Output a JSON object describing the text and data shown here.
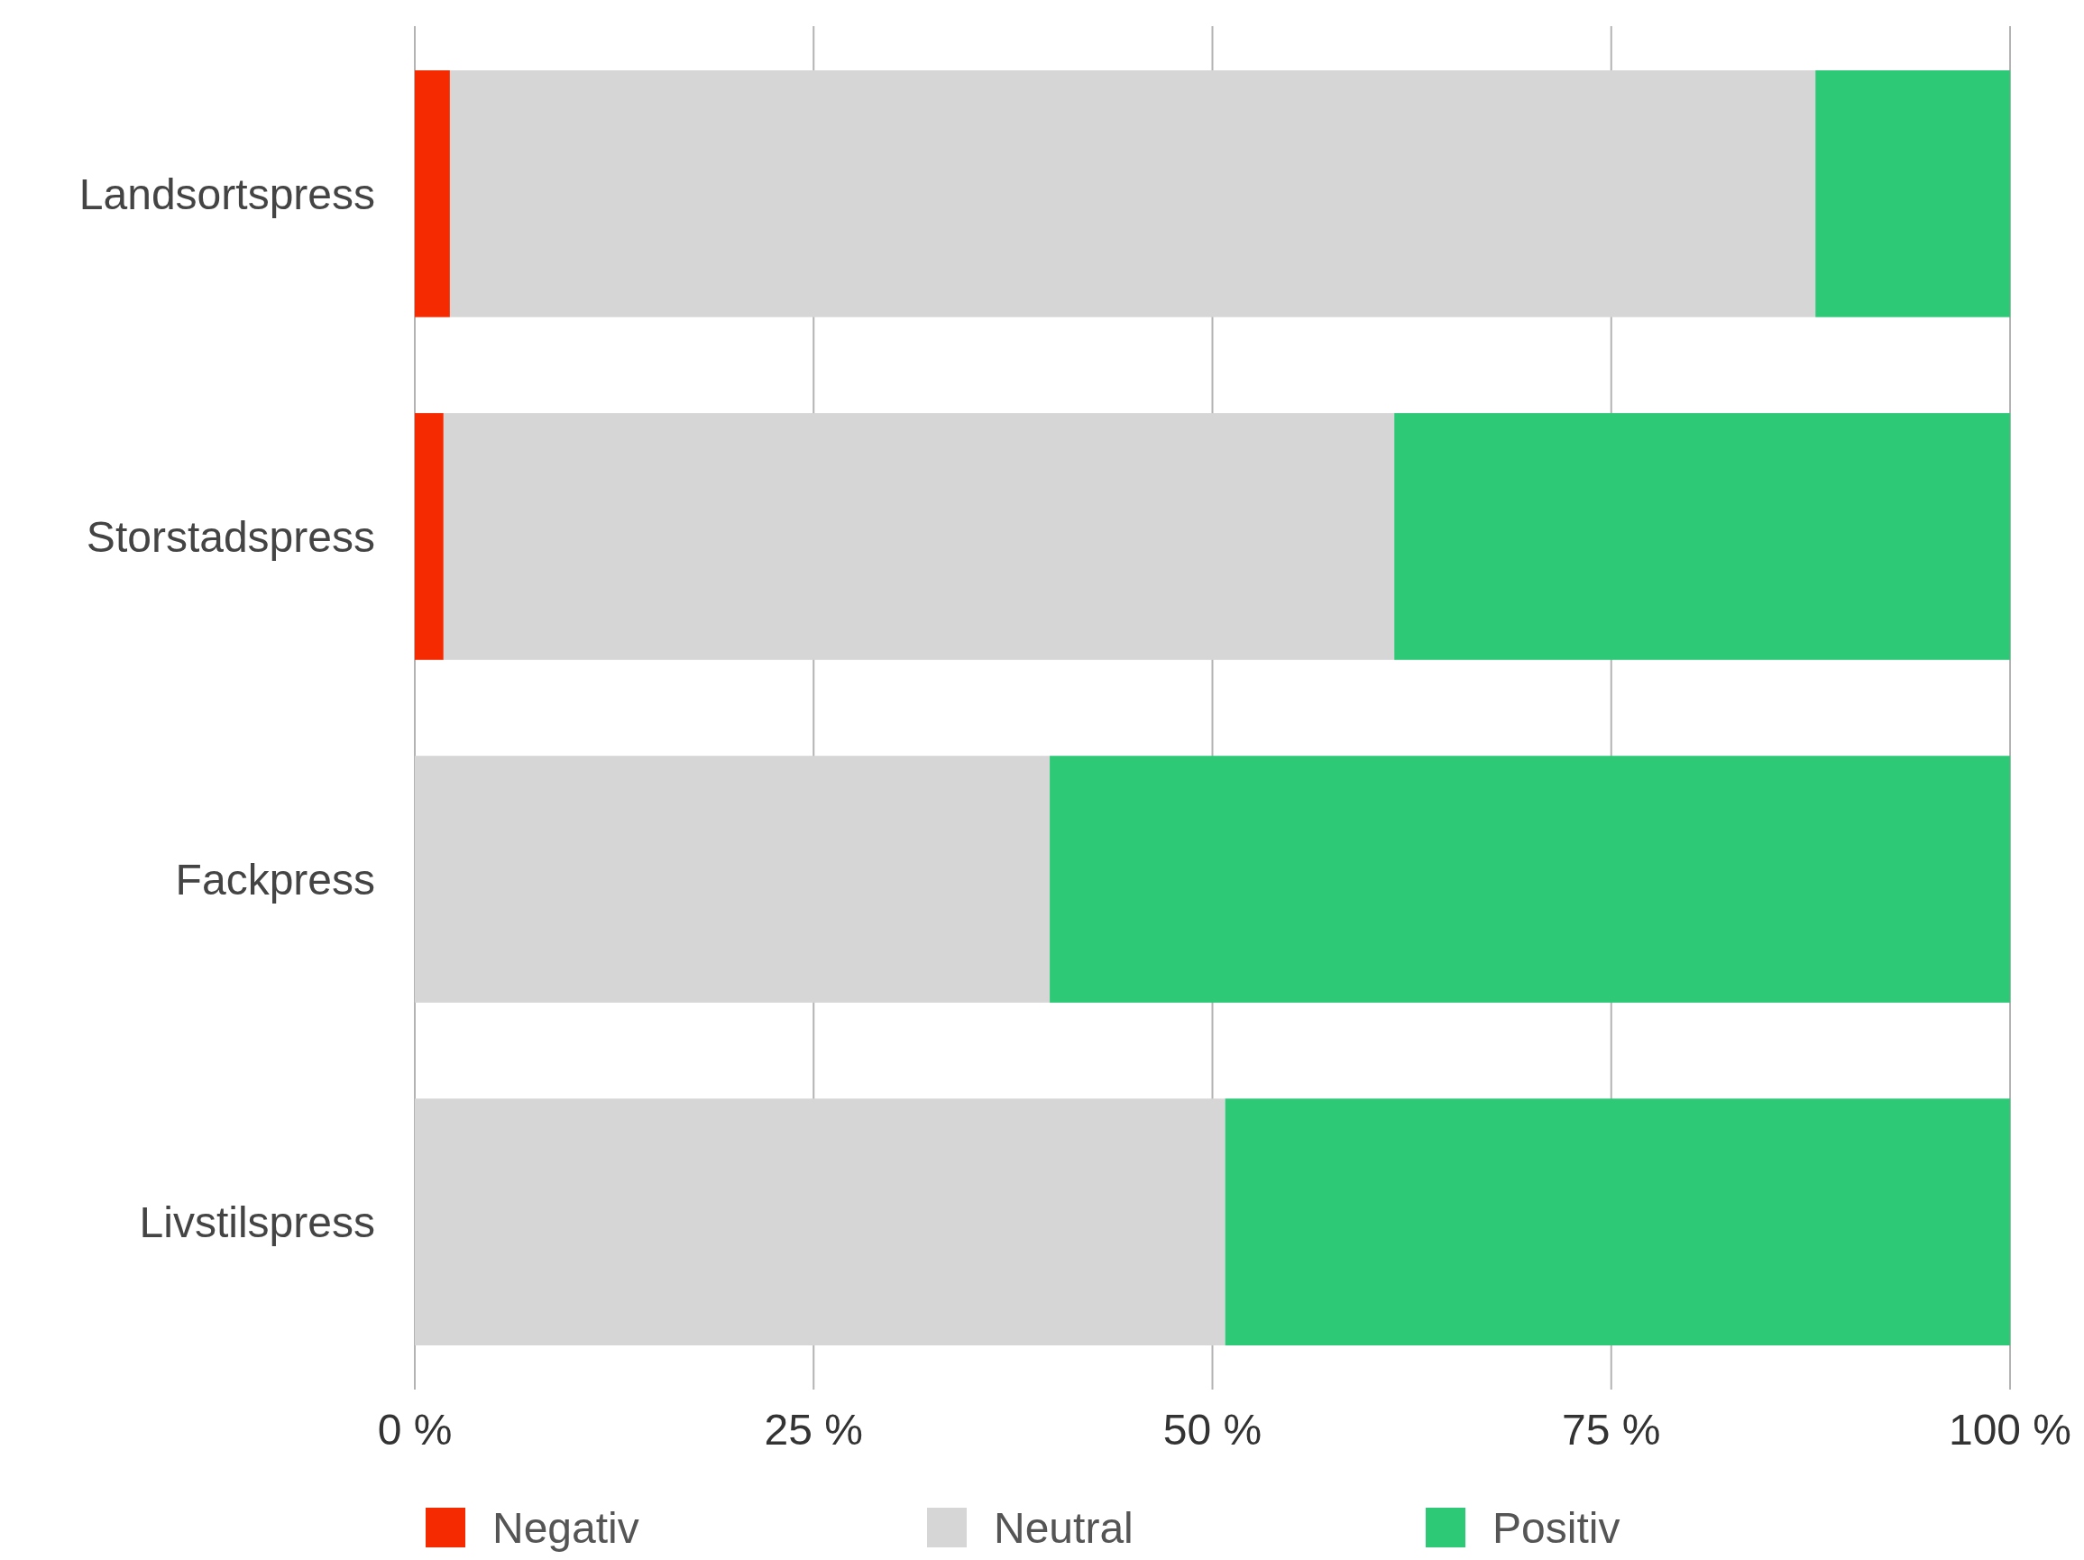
{
  "chart_data": {
    "type": "bar",
    "orientation": "horizontal",
    "stacked": true,
    "categories": [
      "Landsortspress",
      "Storstadspress",
      "Fackpress",
      "Livstilspress"
    ],
    "series": [
      {
        "name": "Negativ",
        "color": "#f52a00",
        "values": [
          2.2,
          1.8,
          0,
          0
        ]
      },
      {
        "name": "Neutral",
        "color": "#d6d6d6",
        "values": [
          85.6,
          59.6,
          39.8,
          50.8
        ]
      },
      {
        "name": "Positiv",
        "color": "#2ec977",
        "values": [
          12.2,
          38.6,
          60.2,
          49.2
        ]
      }
    ],
    "xlim": [
      0,
      100
    ],
    "xticks": [
      {
        "value": 0,
        "label": "0 %"
      },
      {
        "value": 25,
        "label": "25 %"
      },
      {
        "value": 50,
        "label": "50 %"
      },
      {
        "value": 75,
        "label": "75 %"
      },
      {
        "value": 100,
        "label": "100 %"
      }
    ],
    "grid": "x",
    "legend": "bottom"
  }
}
